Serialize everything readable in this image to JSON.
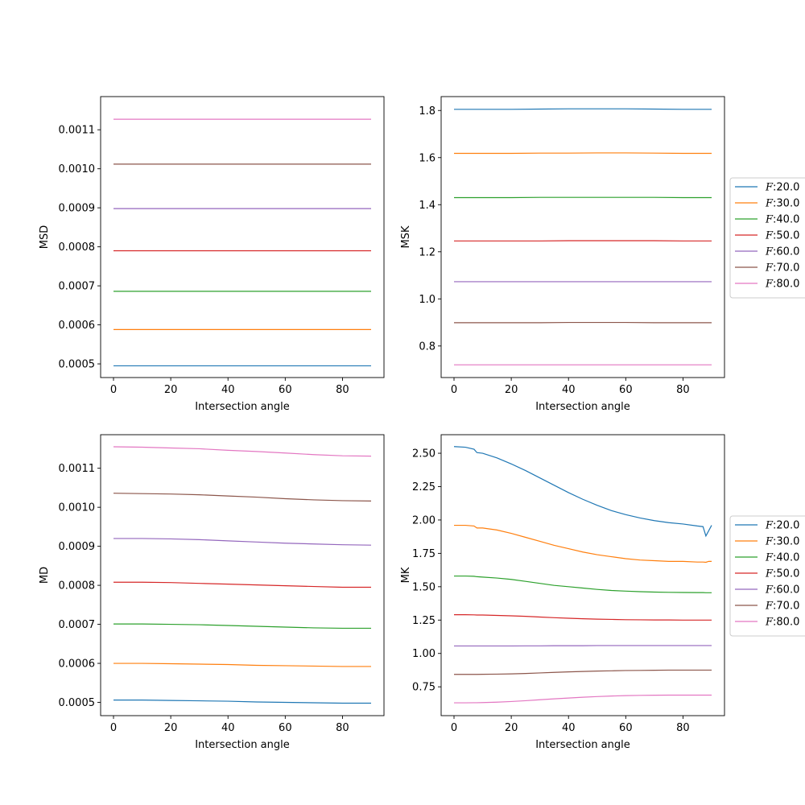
{
  "figure": {
    "width": 1000,
    "height": 1000
  },
  "chart_data": [
    {
      "type": "line",
      "xlabel": "Intersection angle",
      "ylabel": "MSD",
      "xlim": [
        -4.5,
        94.5
      ],
      "ylim": [
        0.000465,
        0.001185
      ],
      "xticks": [
        0,
        20,
        40,
        60,
        80
      ],
      "yticks": [
        0.0005,
        0.0006,
        0.0007,
        0.0008,
        0.0009,
        0.001,
        0.0011
      ],
      "ytick_labels": [
        "0.0005",
        "0.0006",
        "0.0007",
        "0.0008",
        "0.0009",
        "0.0010",
        "0.0011"
      ],
      "grid": false,
      "legend": "",
      "x": [
        0,
        10,
        20,
        30,
        40,
        50,
        60,
        70,
        80,
        90
      ],
      "series": [
        {
          "name": "F:20.0",
          "values": [
            0.000495,
            0.000495,
            0.000495,
            0.000495,
            0.000495,
            0.000495,
            0.000495,
            0.000495,
            0.000495,
            0.000495
          ]
        },
        {
          "name": "F:30.0",
          "values": [
            0.000588,
            0.000588,
            0.000588,
            0.000588,
            0.000588,
            0.000588,
            0.000588,
            0.000588,
            0.000588,
            0.000588
          ]
        },
        {
          "name": "F:40.0",
          "values": [
            0.000686,
            0.000686,
            0.000686,
            0.000686,
            0.000686,
            0.000686,
            0.000686,
            0.000686,
            0.000686,
            0.000686
          ]
        },
        {
          "name": "F:50.0",
          "values": [
            0.00079,
            0.00079,
            0.00079,
            0.00079,
            0.00079,
            0.00079,
            0.00079,
            0.00079,
            0.00079,
            0.00079
          ]
        },
        {
          "name": "F:60.0",
          "values": [
            0.000898,
            0.000898,
            0.000898,
            0.000898,
            0.000898,
            0.000898,
            0.000898,
            0.000898,
            0.000898,
            0.000898
          ]
        },
        {
          "name": "F:70.0",
          "values": [
            0.001012,
            0.001012,
            0.001012,
            0.001012,
            0.001012,
            0.001012,
            0.001012,
            0.001012,
            0.001012,
            0.001012
          ]
        },
        {
          "name": "F:80.0",
          "values": [
            0.001127,
            0.001127,
            0.001127,
            0.001127,
            0.001127,
            0.001127,
            0.001127,
            0.001127,
            0.001127,
            0.001127
          ]
        }
      ]
    },
    {
      "type": "line",
      "xlabel": "Intersection angle",
      "ylabel": "MSK",
      "xlim": [
        -4.5,
        94.5
      ],
      "ylim": [
        0.666,
        1.859
      ],
      "xticks": [
        0,
        20,
        40,
        60,
        80
      ],
      "yticks": [
        0.8,
        1.0,
        1.2,
        1.4,
        1.6,
        1.8
      ],
      "ytick_labels": [
        "0.8",
        "1.0",
        "1.2",
        "1.4",
        "1.6",
        "1.8"
      ],
      "grid": false,
      "legend": "right-outside",
      "x": [
        0,
        10,
        20,
        30,
        40,
        50,
        60,
        70,
        80,
        90
      ],
      "series": [
        {
          "name": "F:20.0",
          "values": [
            1.805,
            1.805,
            1.805,
            1.806,
            1.807,
            1.807,
            1.807,
            1.806,
            1.805,
            1.805
          ]
        },
        {
          "name": "F:30.0",
          "values": [
            1.618,
            1.618,
            1.618,
            1.619,
            1.619,
            1.62,
            1.62,
            1.619,
            1.618,
            1.618
          ]
        },
        {
          "name": "F:40.0",
          "values": [
            1.43,
            1.43,
            1.43,
            1.431,
            1.431,
            1.431,
            1.431,
            1.431,
            1.43,
            1.43
          ]
        },
        {
          "name": "F:50.0",
          "values": [
            1.246,
            1.246,
            1.246,
            1.246,
            1.247,
            1.247,
            1.247,
            1.247,
            1.246,
            1.246
          ]
        },
        {
          "name": "F:60.0",
          "values": [
            1.073,
            1.073,
            1.073,
            1.073,
            1.073,
            1.073,
            1.073,
            1.073,
            1.073,
            1.073
          ]
        },
        {
          "name": "F:70.0",
          "values": [
            0.899,
            0.899,
            0.899,
            0.899,
            0.9,
            0.9,
            0.9,
            0.899,
            0.899,
            0.899
          ]
        },
        {
          "name": "F:80.0",
          "values": [
            0.72,
            0.72,
            0.72,
            0.72,
            0.72,
            0.72,
            0.72,
            0.72,
            0.72,
            0.72
          ]
        }
      ]
    },
    {
      "type": "line",
      "xlabel": "Intersection angle",
      "ylabel": "MD",
      "xlim": [
        -4.5,
        94.5
      ],
      "ylim": [
        0.000466,
        0.001186
      ],
      "xticks": [
        0,
        20,
        40,
        60,
        80
      ],
      "yticks": [
        0.0005,
        0.0006,
        0.0007,
        0.0008,
        0.0009,
        0.001,
        0.0011
      ],
      "ytick_labels": [
        "0.0005",
        "0.0006",
        "0.0007",
        "0.0008",
        "0.0009",
        "0.0010",
        "0.0011"
      ],
      "grid": false,
      "legend": "",
      "x": [
        0,
        10,
        20,
        30,
        40,
        50,
        60,
        70,
        80,
        90
      ],
      "series": [
        {
          "name": "F:20.0",
          "values": [
            0.000506,
            0.000506,
            0.000505,
            0.000504,
            0.000503,
            0.000501,
            0.0005,
            0.000499,
            0.000498,
            0.000498
          ]
        },
        {
          "name": "F:30.0",
          "values": [
            0.0006,
            0.0006,
            0.000599,
            0.000598,
            0.000597,
            0.000595,
            0.000594,
            0.000593,
            0.000592,
            0.000592
          ]
        },
        {
          "name": "F:40.0",
          "values": [
            0.000701,
            0.000701,
            0.0007,
            0.000699,
            0.000697,
            0.000695,
            0.000693,
            0.000691,
            0.00069,
            0.00069
          ]
        },
        {
          "name": "F:50.0",
          "values": [
            0.000808,
            0.000808,
            0.000807,
            0.000805,
            0.000803,
            0.000801,
            0.000799,
            0.000797,
            0.000795,
            0.000795
          ]
        },
        {
          "name": "F:60.0",
          "values": [
            0.00092,
            0.00092,
            0.000919,
            0.000917,
            0.000914,
            0.000911,
            0.000908,
            0.000906,
            0.000904,
            0.000903
          ]
        },
        {
          "name": "F:70.0",
          "values": [
            0.001036,
            0.001035,
            0.001034,
            0.001032,
            0.001029,
            0.001026,
            0.001022,
            0.001019,
            0.001017,
            0.001016
          ]
        },
        {
          "name": "F:80.0",
          "values": [
            0.001155,
            0.001154,
            0.001152,
            0.00115,
            0.001146,
            0.001143,
            0.001139,
            0.001135,
            0.001132,
            0.001131
          ]
        }
      ]
    },
    {
      "type": "line",
      "xlabel": "Intersection angle",
      "ylabel": "MK",
      "xlim": [
        -4.5,
        94.5
      ],
      "ylim": [
        0.534,
        2.639
      ],
      "xticks": [
        0,
        20,
        40,
        60,
        80
      ],
      "yticks": [
        0.75,
        1.0,
        1.25,
        1.5,
        1.75,
        2.0,
        2.25,
        2.5
      ],
      "ytick_labels": [
        "0.75",
        "1.00",
        "1.25",
        "1.50",
        "1.75",
        "2.00",
        "2.25",
        "2.50"
      ],
      "grid": false,
      "legend": "right-outside",
      "x": [
        0,
        4,
        7,
        8,
        10,
        15,
        20,
        25,
        30,
        35,
        40,
        45,
        50,
        55,
        60,
        65,
        70,
        75,
        80,
        85,
        87,
        88,
        89,
        90
      ],
      "series": [
        {
          "name": "F:20.0",
          "values": [
            2.55,
            2.545,
            2.53,
            2.505,
            2.5,
            2.465,
            2.42,
            2.37,
            2.315,
            2.26,
            2.205,
            2.155,
            2.11,
            2.07,
            2.04,
            2.015,
            1.995,
            1.98,
            1.97,
            1.955,
            1.95,
            1.88,
            1.92,
            1.96
          ]
        },
        {
          "name": "F:30.0",
          "values": [
            1.96,
            1.96,
            1.955,
            1.94,
            1.94,
            1.925,
            1.9,
            1.87,
            1.84,
            1.81,
            1.785,
            1.76,
            1.74,
            1.725,
            1.71,
            1.7,
            1.695,
            1.69,
            1.69,
            1.685,
            1.685,
            1.683,
            1.69,
            1.69
          ]
        },
        {
          "name": "F:40.0",
          "values": [
            1.58,
            1.58,
            1.578,
            1.575,
            1.572,
            1.565,
            1.555,
            1.54,
            1.525,
            1.51,
            1.5,
            1.49,
            1.48,
            1.472,
            1.467,
            1.463,
            1.46,
            1.458,
            1.457,
            1.456,
            1.456,
            1.455,
            1.455,
            1.455
          ]
        },
        {
          "name": "F:50.0",
          "values": [
            1.29,
            1.29,
            1.289,
            1.288,
            1.288,
            1.285,
            1.282,
            1.278,
            1.273,
            1.268,
            1.264,
            1.26,
            1.257,
            1.255,
            1.253,
            1.252,
            1.251,
            1.251,
            1.25,
            1.25,
            1.25,
            1.25,
            1.25,
            1.25
          ]
        },
        {
          "name": "F:60.0",
          "values": [
            1.056,
            1.056,
            1.056,
            1.056,
            1.056,
            1.056,
            1.056,
            1.057,
            1.057,
            1.058,
            1.058,
            1.058,
            1.059,
            1.059,
            1.059,
            1.059,
            1.059,
            1.059,
            1.059,
            1.059,
            1.059,
            1.059,
            1.059,
            1.059
          ]
        },
        {
          "name": "F:70.0",
          "values": [
            0.843,
            0.843,
            0.843,
            0.843,
            0.844,
            0.845,
            0.847,
            0.85,
            0.854,
            0.858,
            0.862,
            0.865,
            0.868,
            0.87,
            0.872,
            0.873,
            0.874,
            0.875,
            0.875,
            0.875,
            0.875,
            0.875,
            0.875,
            0.875
          ]
        },
        {
          "name": "F:80.0",
          "values": [
            0.63,
            0.63,
            0.631,
            0.631,
            0.632,
            0.635,
            0.64,
            0.646,
            0.653,
            0.66,
            0.666,
            0.672,
            0.677,
            0.681,
            0.684,
            0.686,
            0.687,
            0.688,
            0.688,
            0.688,
            0.688,
            0.688,
            0.688,
            0.688
          ]
        }
      ]
    }
  ],
  "colors": [
    "#1f77b4",
    "#ff7f0e",
    "#2ca02c",
    "#d62728",
    "#9467bd",
    "#8c564b",
    "#e377c2"
  ]
}
